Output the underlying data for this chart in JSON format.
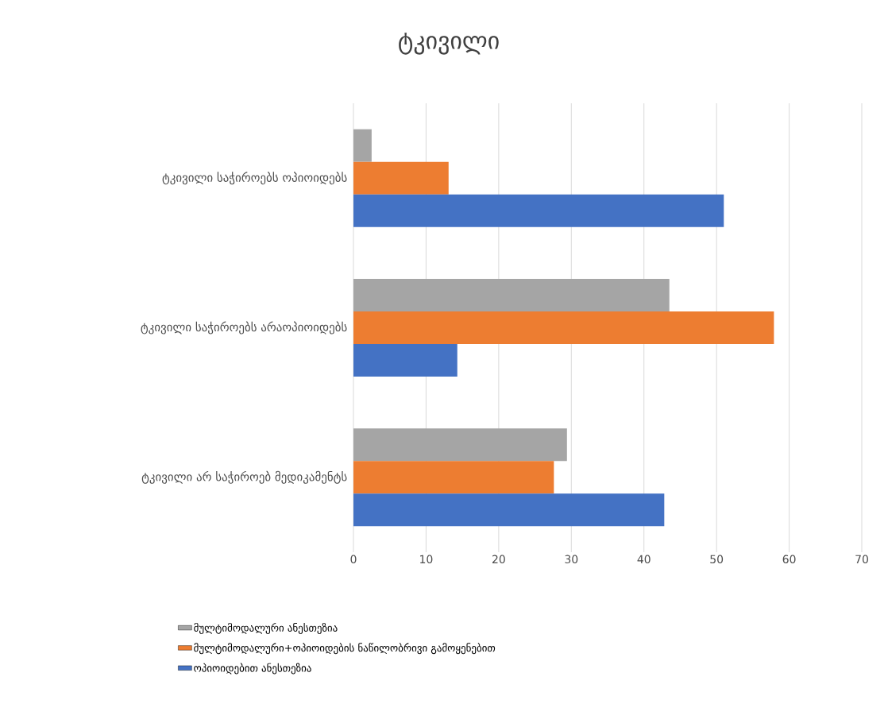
{
  "chart_data": {
    "type": "bar",
    "orientation": "horizontal",
    "title": "ტკივილი",
    "categories": [
      "ტკივილი საჭიროებს ოპიოიდებს",
      "ტკივილი საჭიროებს არაოპიოიდებს",
      "ტკივილი არ საჭიროებ მედიკამენტს"
    ],
    "series": [
      {
        "name": "მულტიმოდალური ანესთეზია",
        "color": "#a5a5a5",
        "values": [
          2.5,
          43.5,
          29.4
        ]
      },
      {
        "name": "მულტიმოდალური+ოპიოიდების ნაწილობრივი გამოყენებით",
        "color": "#ed7d31",
        "values": [
          13.1,
          57.9,
          27.6
        ]
      },
      {
        "name": "ოპიოიდებით ანესთეზია",
        "color": "#4472c4",
        "values": [
          51.0,
          14.3,
          42.8
        ]
      }
    ],
    "xlim": [
      0,
      70
    ],
    "xticks": [
      0,
      10,
      20,
      30,
      40,
      50,
      60,
      70
    ],
    "grid": "x",
    "legend": "bottom"
  }
}
